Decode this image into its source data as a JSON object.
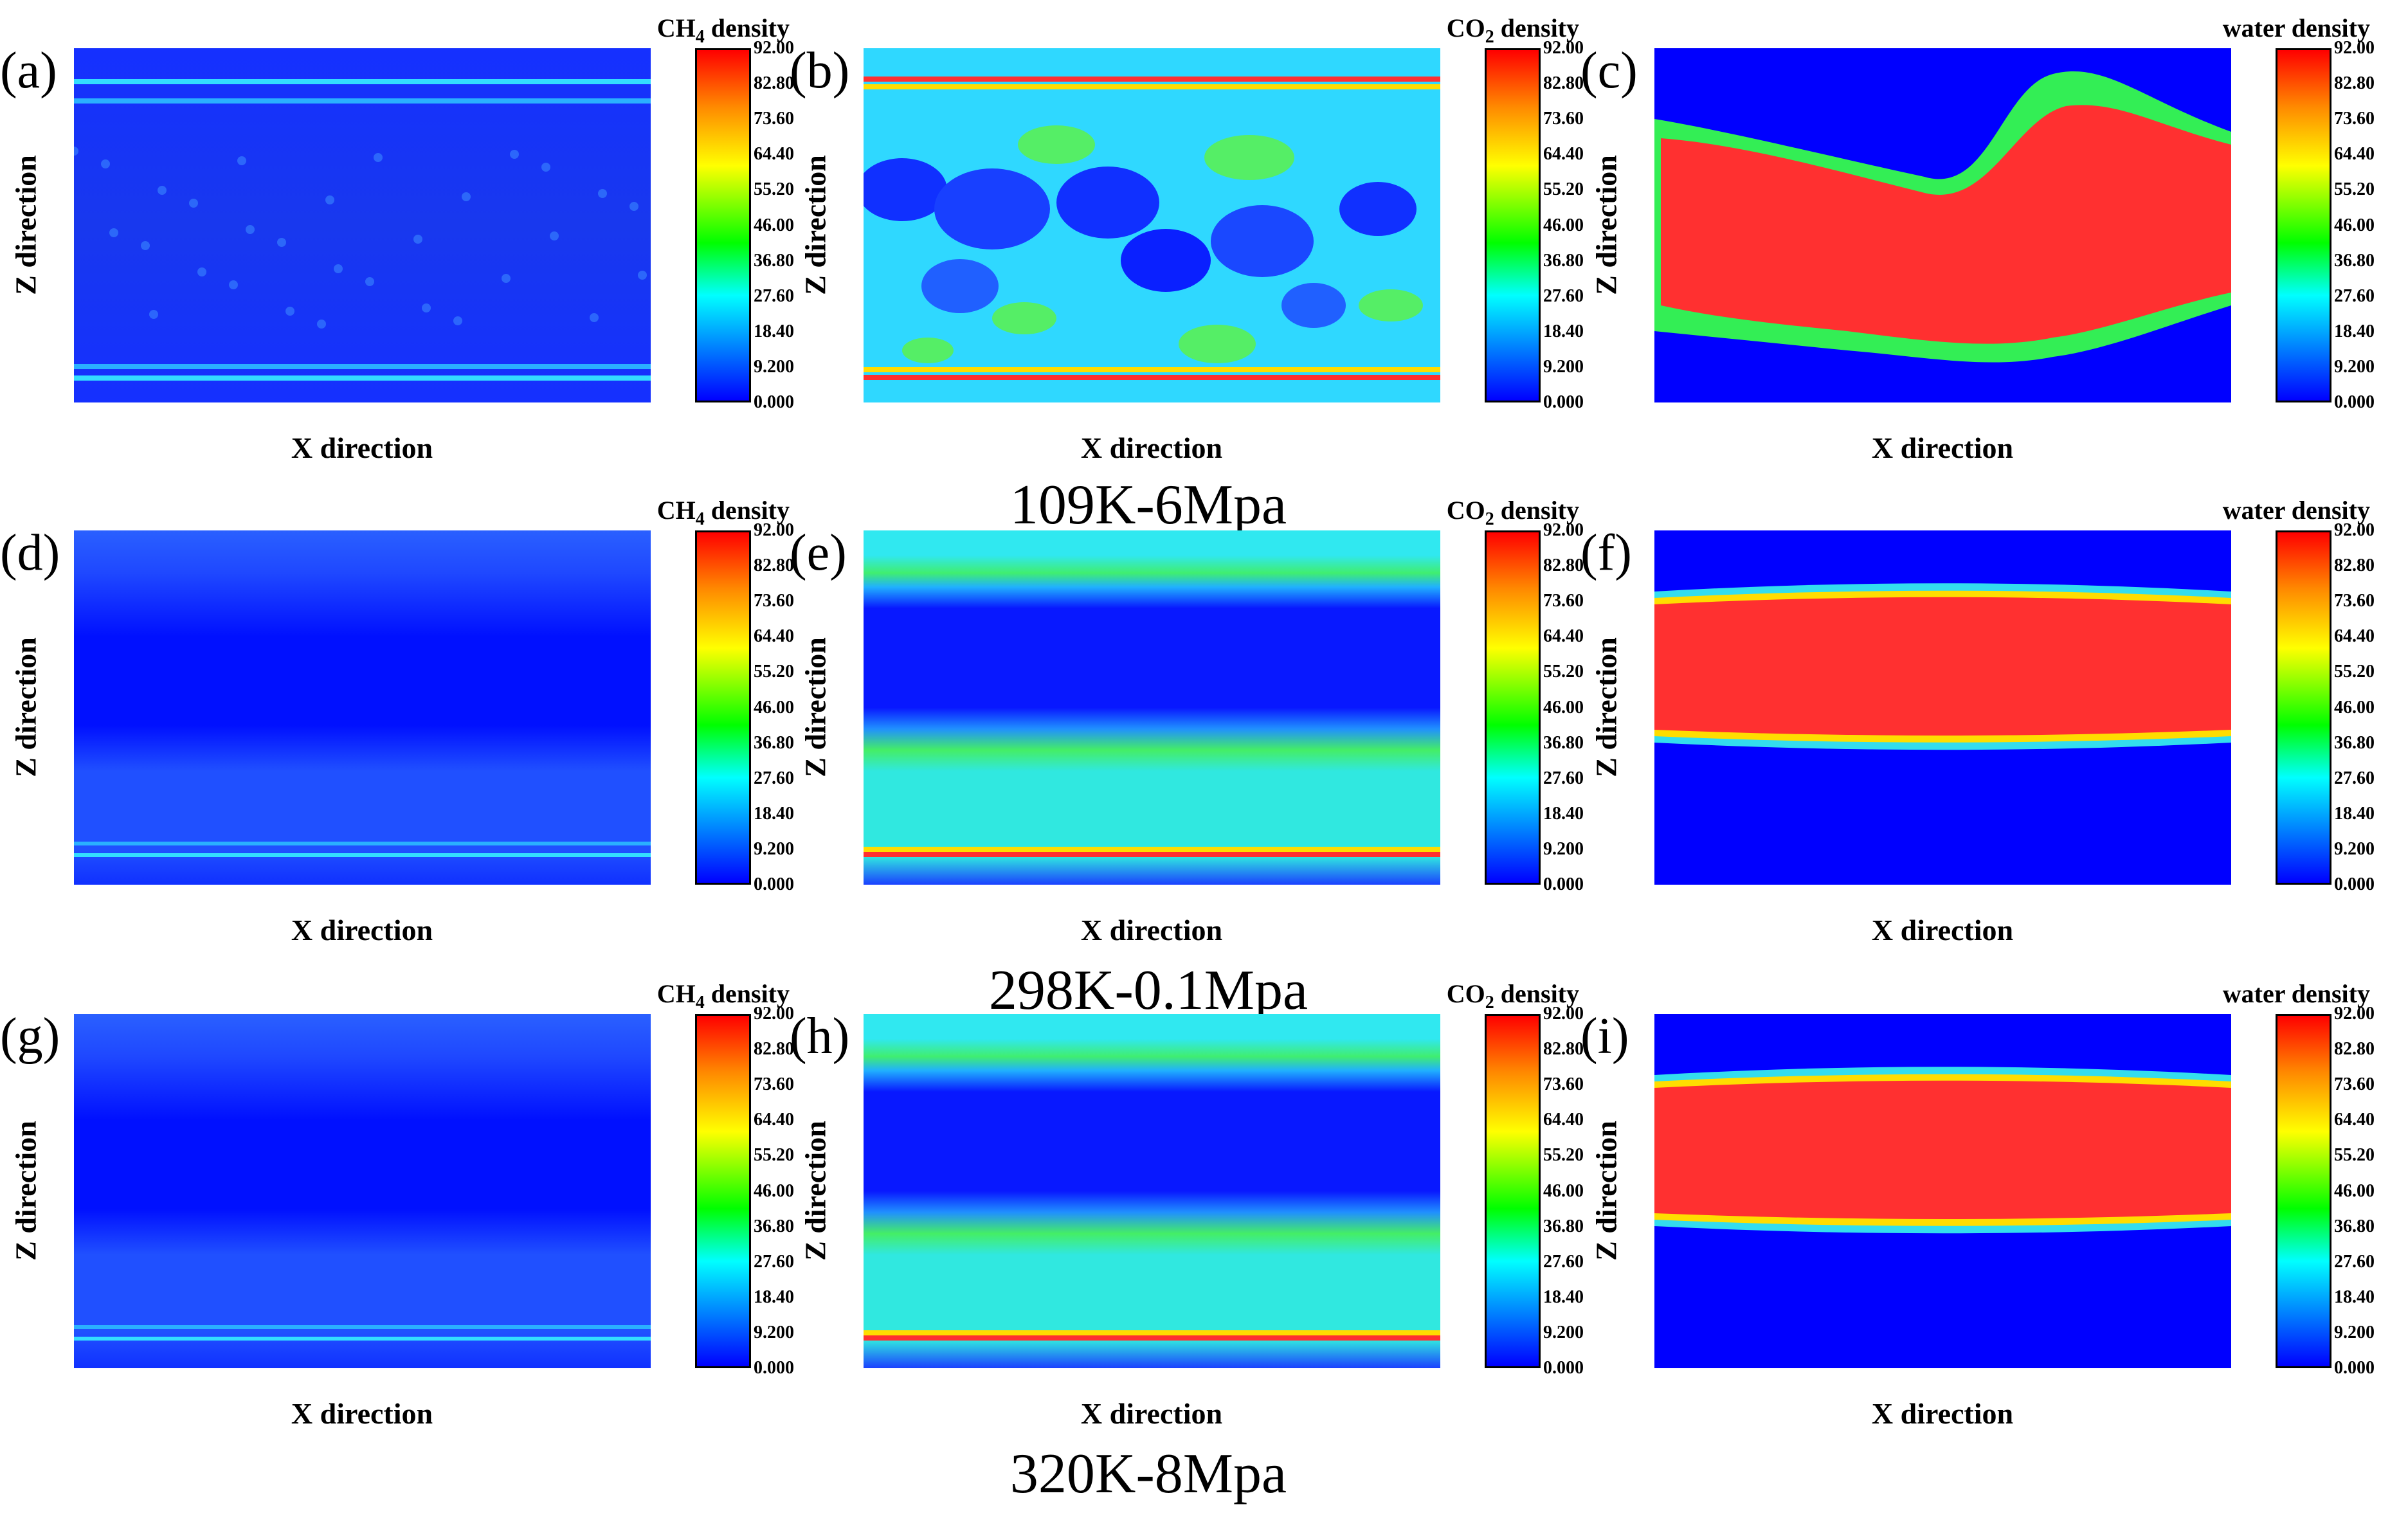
{
  "chart_data": {
    "type": "heatmap",
    "description_note": "3x3 grid of density contour maps",
    "colorbar_ticks": [
      "92.00",
      "82.80",
      "73.60",
      "64.40",
      "55.20",
      "46.00",
      "36.80",
      "27.60",
      "18.40",
      "9.200",
      "0.000"
    ],
    "colorbar_range": [
      0,
      92
    ],
    "rows": [
      {
        "condition": "109K-6Mpa",
        "panels": [
          {
            "label": "(a)",
            "species": "CH",
            "sub": "4",
            "suffix": " density",
            "xlabel": "X direction",
            "ylabel": "Z direction",
            "pattern": "ch4_low"
          },
          {
            "label": "(b)",
            "species": "CO",
            "sub": "2",
            "suffix": " density",
            "xlabel": "X direction",
            "ylabel": "Z direction",
            "pattern": "co2_mixed"
          },
          {
            "label": "(c)",
            "species": "water density",
            "sub": "",
            "suffix": "",
            "xlabel": "X direction",
            "ylabel": "Z direction",
            "pattern": "water_irregular"
          }
        ]
      },
      {
        "condition": "298K-0.1Mpa",
        "panels": [
          {
            "label": "(d)",
            "species": "CH",
            "sub": "4",
            "suffix": " density",
            "xlabel": "X direction",
            "ylabel": "Z direction",
            "pattern": "ch4_bands"
          },
          {
            "label": "(e)",
            "species": "CO",
            "sub": "2",
            "suffix": " density",
            "xlabel": "X direction",
            "ylabel": "Z direction",
            "pattern": "co2_bands"
          },
          {
            "label": "(f)",
            "species": "water density",
            "sub": "",
            "suffix": "",
            "xlabel": "X direction",
            "ylabel": "Z direction",
            "pattern": "water_slab"
          }
        ]
      },
      {
        "condition": "320K-8Mpa",
        "panels": [
          {
            "label": "(g)",
            "species": "CH",
            "sub": "4",
            "suffix": " density",
            "xlabel": "X direction",
            "ylabel": "Z direction",
            "pattern": "ch4_bands"
          },
          {
            "label": "(h)",
            "species": "CO",
            "sub": "2",
            "suffix": " density",
            "xlabel": "X direction",
            "ylabel": "Z direction",
            "pattern": "co2_bands"
          },
          {
            "label": "(i)",
            "species": "water density",
            "sub": "",
            "suffix": "",
            "xlabel": "X direction",
            "ylabel": "Z direction",
            "pattern": "water_slab"
          }
        ]
      }
    ]
  },
  "colors": {
    "blue": "#0000ff",
    "red": "#ff3030",
    "cyan": "#33ddff",
    "green": "#33ee55",
    "yellow": "#ffff00"
  }
}
